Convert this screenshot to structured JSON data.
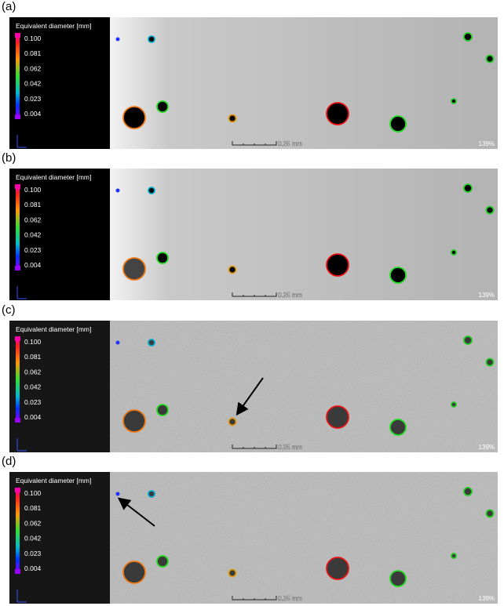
{
  "panels": [
    {
      "label": "(a)",
      "colorbar": {
        "title": "Equivalent diameter [mm]",
        "ticks": [
          "0.100",
          "0.081",
          "0.062",
          "0.042",
          "0.023",
          "0.004"
        ]
      },
      "scale_bar": "0.25 mm",
      "zoom": "139%"
    },
    {
      "label": "(b)",
      "colorbar": {
        "title": "Equivalent diameter [mm]",
        "ticks": [
          "0.100",
          "0.081",
          "0.062",
          "0.042",
          "0.023",
          "0.004"
        ]
      },
      "scale_bar": "0.25 mm",
      "zoom": "139%"
    },
    {
      "label": "(c)",
      "colorbar": {
        "title": "Equivalent diameter [mm]",
        "ticks": [
          "0.100",
          "0.081",
          "0.062",
          "0.042",
          "0.023",
          "0.004"
        ]
      },
      "scale_bar": "0.25 mm",
      "zoom": "139%"
    },
    {
      "label": "(d)",
      "colorbar": {
        "title": "Equivalent diameter [mm]",
        "ticks": [
          "0.100",
          "0.081",
          "0.062",
          "0.042",
          "0.023",
          "0.004"
        ]
      },
      "scale_bar": "0.25 mm",
      "zoom": "139%"
    }
  ]
}
